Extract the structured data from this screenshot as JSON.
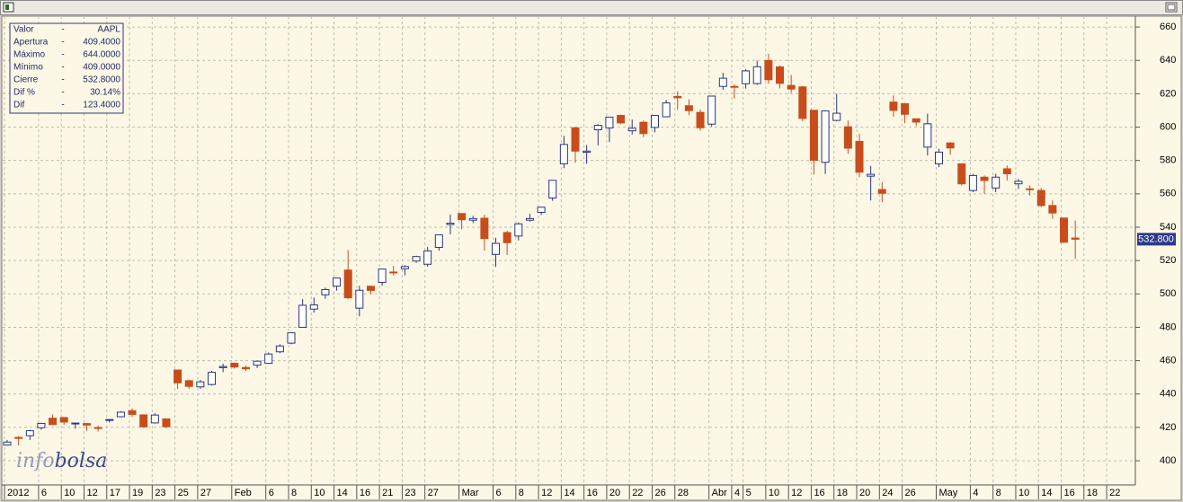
{
  "chart_data": {
    "type": "candlestick",
    "categories": [
      "2012",
      null,
      null,
      "6",
      null,
      "10",
      null,
      "12",
      null,
      "17",
      null,
      "19",
      null,
      "23",
      null,
      "25",
      null,
      "27",
      null,
      null,
      "Feb",
      null,
      null,
      "6",
      null,
      "8",
      null,
      "10",
      null,
      "14",
      null,
      "16",
      null,
      "21",
      null,
      "23",
      null,
      "27",
      null,
      null,
      "Mar",
      null,
      null,
      "6",
      null,
      "8",
      null,
      "12",
      null,
      "14",
      null,
      "16",
      null,
      "20",
      null,
      "22",
      null,
      "26",
      null,
      "28",
      null,
      null,
      "Abr",
      null,
      "4",
      "5",
      null,
      "10",
      null,
      "12",
      null,
      "16",
      null,
      "18",
      null,
      "20",
      null,
      "24",
      null,
      "26",
      null,
      null,
      "May",
      null,
      null,
      "4",
      null,
      "8",
      null,
      "10",
      null,
      "14",
      null,
      "16",
      null,
      "18",
      null,
      "22"
    ],
    "open": [
      409.4,
      414.0,
      415.0,
      419.8,
      425.5,
      425.9,
      422.4,
      422.3,
      419.9,
      424.2,
      426.4,
      430.0,
      427.5,
      422.7,
      425.1,
      454.4,
      448.0,
      444.3,
      445.7,
      455.8,
      458.4,
      455.9,
      457.3,
      458.4,
      465.3,
      470.5,
      480.0,
      490.9,
      499.5,
      504.7,
      514.3,
      491.5,
      504.6,
      506.9,
      513.1,
      515.1,
      519.7,
      517.8,
      527.9,
      541.6,
      548.2,
      544.2,
      545.4,
      523.7,
      536.8,
      534.7,
      544.2,
      548.9,
      557.5,
      578.0,
      599.6,
      584.9,
      598.4,
      599.5,
      607.0,
      597.8,
      602.9,
      599.8,
      606.2,
      618.4,
      612.8,
      608.8,
      601.8,
      624.4,
      624.4,
      626.0,
      626.1,
      639.9,
      636.1,
      625.0,
      624.1,
      610.1,
      578.9,
      604.0,
      600.2,
      591.4,
      570.6,
      562.6,
      615.0,
      614.0,
      605.0,
      588.0,
      578.0,
      590.5,
      578.0,
      562.0,
      570.0,
      563.5,
      575.0,
      566.0,
      563.0,
      562.0,
      553.0,
      545.5,
      533.5,
      null,
      null,
      null
    ],
    "high": [
      412.5,
      414.7,
      418.6,
      422.8,
      427.8,
      426.0,
      422.9,
      422.6,
      421.0,
      425.0,
      429.7,
      431.4,
      427.8,
      428.5,
      425.1,
      454.5,
      448.8,
      448.5,
      453.9,
      458.2,
      458.9,
      457.0,
      460.0,
      464.9,
      469.8,
      476.8,
      496.8,
      497.9,
      503.8,
      509.6,
      526.3,
      504.9,
      505.0,
      515.0,
      516.9,
      517.3,
      522.9,
      528.1,
      535.4,
      547.6,
      548.2,
      546.8,
      547.5,
      533.7,
      537.8,
      542.9,
      548.0,
      552.0,
      568.2,
      594.7,
      600.0,
      589.2,
      601.8,
      606.0,
      607.5,
      604.5,
      604.0,
      607.2,
      616.3,
      621.5,
      616.6,
      610.6,
      618.8,
      632.6,
      625.6,
      634.7,
      639.8,
      644.0,
      636.9,
      631.3,
      624.7,
      610.2,
      610.0,
      620.0,
      604.0,
      596.0,
      576.7,
      567.0,
      619.0,
      614.5,
      605.0,
      608.0,
      587.0,
      591.0,
      578.2,
      572.0,
      571.0,
      572.0,
      577.0,
      569.0,
      565.0,
      563.5,
      556.0,
      545.5,
      544.0,
      null,
      null,
      null
    ],
    "low": [
      409.0,
      409.3,
      412.5,
      418.6,
      421.4,
      421.5,
      419.3,
      418.0,
      417.5,
      422.9,
      426.1,
      426.3,
      419.8,
      422.3,
      419.6,
      443.1,
      443.1,
      443.1,
      445.1,
      453.1,
      455.2,
      453.9,
      455.6,
      458.0,
      464.5,
      469.8,
      480.0,
      488.8,
      497.1,
      502.0,
      496.9,
      486.6,
      500.0,
      504.8,
      511.1,
      511.1,
      518.6,
      516.3,
      525.9,
      535.7,
      538.8,
      542.5,
      526.0,
      516.2,
      523.3,
      532.1,
      543.4,
      547.3,
      555.8,
      575.4,
      578.6,
      578.0,
      589.0,
      591.0,
      601.8,
      595.5,
      594.0,
      596.8,
      606.1,
      610.3,
      607.2,
      597.9,
      600.4,
      622.4,
      617.1,
      623.1,
      625.3,
      626.0,
      623.2,
      620.5,
      603.5,
      571.5,
      571.9,
      603.5,
      584.0,
      570.0,
      556.0,
      555.0,
      606.2,
      602.3,
      600.7,
      583.0,
      576.0,
      583.4,
      565.0,
      561.0,
      560.0,
      561.0,
      568.0,
      563.0,
      559.0,
      552.0,
      545.0,
      530.5,
      521.0,
      null,
      null,
      null
    ],
    "close": [
      411.2,
      413.4,
      418.0,
      422.4,
      421.7,
      423.2,
      422.6,
      421.4,
      419.8,
      424.7,
      429.1,
      427.8,
      420.3,
      427.4,
      420.4,
      446.7,
      444.6,
      447.3,
      453.0,
      456.5,
      456.2,
      455.1,
      459.7,
      464.0,
      468.8,
      476.7,
      493.2,
      493.4,
      502.6,
      509.5,
      497.7,
      502.2,
      502.1,
      514.9,
      513.0,
      516.4,
      522.4,
      525.8,
      535.4,
      542.4,
      544.5,
      545.2,
      533.2,
      530.3,
      530.7,
      542.0,
      545.2,
      552.0,
      568.1,
      589.6,
      585.6,
      585.6,
      601.1,
      606.0,
      602.5,
      599.3,
      596.1,
      607.0,
      614.5,
      617.6,
      609.9,
      599.6,
      618.6,
      629.3,
      624.3,
      633.7,
      636.2,
      628.4,
      626.2,
      622.8,
      605.2,
      580.1,
      609.7,
      608.3,
      587.4,
      573.0,
      571.7,
      560.3,
      610.0,
      607.7,
      603.0,
      602.0,
      585.0,
      587.5,
      566.0,
      571.0,
      568.0,
      570.0,
      572.0,
      567.5,
      562.5,
      553.0,
      548.5,
      531.0,
      532.8,
      null,
      null,
      null
    ],
    "up_color": "#ffffff",
    "down_color": "#c84d1c",
    "edge_color": "#2a3680",
    "ylim": [
      385.5,
      666.5
    ],
    "yticks": [
      400,
      420,
      440,
      460,
      480,
      500,
      520,
      540,
      560,
      580,
      600,
      620,
      640,
      660
    ],
    "grid": true,
    "last_price": {
      "value": 532.8,
      "label": "532.800"
    }
  },
  "info_box": {
    "rows": [
      [
        "Valor",
        "-",
        "AAPL"
      ],
      [
        "Apertura",
        "-",
        "409.4000"
      ],
      [
        "Máximo",
        "-",
        "644.0000"
      ],
      [
        "Mínimo",
        "-",
        "409.0000"
      ],
      [
        "Cierre",
        "-",
        "532.8000"
      ],
      [
        "Dif %",
        "-",
        "30.14%"
      ],
      [
        "Dif",
        "-",
        "123.4000"
      ]
    ]
  },
  "logo": {
    "light": "info",
    "dark": "bolsa"
  }
}
